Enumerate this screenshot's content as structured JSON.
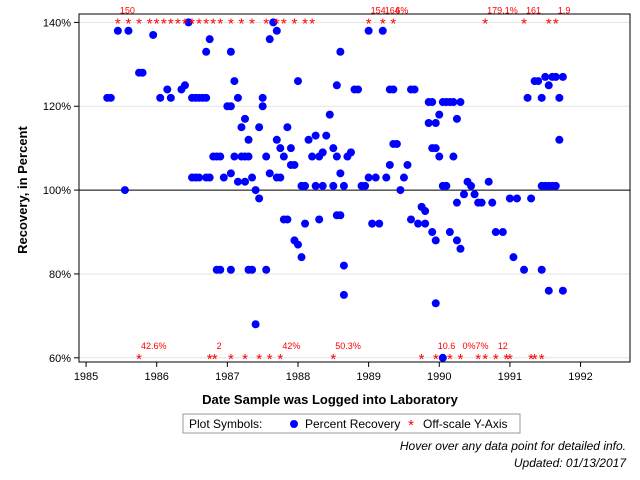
{
  "chart_data": {
    "type": "scatter",
    "xlabel": "Date Sample was Logged into Laboratory",
    "ylabel": "Recovery, in Percent",
    "xlim": [
      1984.9,
      1992.7
    ],
    "ylim": [
      59,
      142
    ],
    "x_ticks": [
      1985,
      1986,
      1987,
      1988,
      1989,
      1990,
      1991,
      1992
    ],
    "x_tick_labels": [
      "1985",
      "1986",
      "1987",
      "1988",
      "1989",
      "1990",
      "1991",
      "1992"
    ],
    "y_ticks": [
      60,
      80,
      100,
      120,
      140
    ],
    "y_tick_labels": [
      "60%",
      "80%",
      "100%",
      "120%",
      "140%"
    ],
    "reference_line": 100,
    "grid": "horizontal",
    "colors": {
      "points": "#0000ff",
      "offscale": "#ff0000",
      "grid": "#e3e3e3"
    },
    "series": [
      {
        "name": "Percent Recovery",
        "points": [
          [
            1985.3,
            122
          ],
          [
            1985.35,
            122
          ],
          [
            1985.45,
            138
          ],
          [
            1985.55,
            100
          ],
          [
            1985.6,
            138
          ],
          [
            1985.75,
            128
          ],
          [
            1985.8,
            128
          ],
          [
            1985.95,
            137
          ],
          [
            1986.05,
            122
          ],
          [
            1986.15,
            124
          ],
          [
            1986.2,
            122
          ],
          [
            1986.35,
            124
          ],
          [
            1986.4,
            125
          ],
          [
            1986.45,
            140
          ],
          [
            1986.5,
            122
          ],
          [
            1986.55,
            122
          ],
          [
            1986.6,
            122
          ],
          [
            1986.65,
            122
          ],
          [
            1986.7,
            122
          ],
          [
            1986.5,
            103
          ],
          [
            1986.55,
            103
          ],
          [
            1986.6,
            103
          ],
          [
            1986.7,
            103
          ],
          [
            1986.75,
            103
          ],
          [
            1986.7,
            133
          ],
          [
            1986.75,
            136
          ],
          [
            1986.8,
            108
          ],
          [
            1986.85,
            108
          ],
          [
            1986.9,
            108
          ],
          [
            1986.95,
            103
          ],
          [
            1986.85,
            81
          ],
          [
            1986.9,
            81
          ],
          [
            1987.0,
            120
          ],
          [
            1987.05,
            120
          ],
          [
            1987.05,
            133
          ],
          [
            1987.1,
            126
          ],
          [
            1987.15,
            122
          ],
          [
            1987.2,
            115
          ],
          [
            1987.25,
            117
          ],
          [
            1987.3,
            112
          ],
          [
            1987.1,
            108
          ],
          [
            1987.2,
            108
          ],
          [
            1987.25,
            108
          ],
          [
            1987.3,
            108
          ],
          [
            1987.05,
            104
          ],
          [
            1987.15,
            102
          ],
          [
            1987.25,
            102
          ],
          [
            1987.05,
            81
          ],
          [
            1987.3,
            81
          ],
          [
            1987.35,
            81
          ],
          [
            1987.35,
            103
          ],
          [
            1987.4,
            100
          ],
          [
            1987.4,
            68
          ],
          [
            1987.45,
            98
          ],
          [
            1987.45,
            115
          ],
          [
            1987.5,
            120
          ],
          [
            1987.5,
            122
          ],
          [
            1987.55,
            108
          ],
          [
            1987.6,
            104
          ],
          [
            1987.55,
            81
          ],
          [
            1987.6,
            136
          ],
          [
            1987.65,
            140
          ],
          [
            1987.7,
            138
          ],
          [
            1987.7,
            112
          ],
          [
            1987.75,
            110
          ],
          [
            1987.7,
            103
          ],
          [
            1987.75,
            103
          ],
          [
            1987.8,
            108
          ],
          [
            1987.8,
            93
          ],
          [
            1987.85,
            93
          ],
          [
            1987.85,
            115
          ],
          [
            1987.9,
            110
          ],
          [
            1987.9,
            106
          ],
          [
            1987.95,
            106
          ],
          [
            1987.95,
            88
          ],
          [
            1988.0,
            87
          ],
          [
            1988.05,
            84
          ],
          [
            1988.0,
            126
          ],
          [
            1988.05,
            101
          ],
          [
            1988.1,
            101
          ],
          [
            1988.1,
            92
          ],
          [
            1988.15,
            112
          ],
          [
            1988.2,
            108
          ],
          [
            1988.25,
            113
          ],
          [
            1988.3,
            108
          ],
          [
            1988.35,
            109
          ],
          [
            1988.25,
            101
          ],
          [
            1988.35,
            101
          ],
          [
            1988.3,
            93
          ],
          [
            1988.4,
            113
          ],
          [
            1988.45,
            118
          ],
          [
            1988.5,
            110
          ],
          [
            1988.55,
            125
          ],
          [
            1988.55,
            108
          ],
          [
            1988.6,
            104
          ],
          [
            1988.5,
            101
          ],
          [
            1988.55,
            94
          ],
          [
            1988.6,
            94
          ],
          [
            1988.65,
            101
          ],
          [
            1988.65,
            82
          ],
          [
            1988.65,
            75
          ],
          [
            1988.7,
            108
          ],
          [
            1988.75,
            109
          ],
          [
            1988.6,
            133
          ],
          [
            1988.8,
            124
          ],
          [
            1988.85,
            124
          ],
          [
            1988.9,
            101
          ],
          [
            1988.95,
            101
          ],
          [
            1989.0,
            138
          ],
          [
            1989.0,
            103
          ],
          [
            1989.05,
            92
          ],
          [
            1989.15,
            92
          ],
          [
            1989.1,
            103
          ],
          [
            1989.25,
            103
          ],
          [
            1989.2,
            138
          ],
          [
            1989.3,
            124
          ],
          [
            1989.35,
            124
          ],
          [
            1989.3,
            106
          ],
          [
            1989.35,
            111
          ],
          [
            1989.4,
            111
          ],
          [
            1989.45,
            100
          ],
          [
            1989.5,
            103
          ],
          [
            1989.55,
            106
          ],
          [
            1989.6,
            124
          ],
          [
            1989.65,
            124
          ],
          [
            1989.6,
            93
          ],
          [
            1989.7,
            92
          ],
          [
            1989.75,
            96
          ],
          [
            1989.8,
            95
          ],
          [
            1989.8,
            92
          ],
          [
            1989.85,
            121
          ],
          [
            1989.9,
            121
          ],
          [
            1989.85,
            116
          ],
          [
            1989.95,
            116
          ],
          [
            1989.9,
            110
          ],
          [
            1989.95,
            110
          ],
          [
            1989.9,
            90
          ],
          [
            1989.95,
            88
          ],
          [
            1989.95,
            73
          ],
          [
            1990.0,
            118
          ],
          [
            1990.05,
            121
          ],
          [
            1990.1,
            121
          ],
          [
            1990.0,
            108
          ],
          [
            1990.05,
            101
          ],
          [
            1990.1,
            101
          ],
          [
            1990.15,
            121
          ],
          [
            1990.2,
            121
          ],
          [
            1990.25,
            117
          ],
          [
            1990.3,
            121
          ],
          [
            1990.2,
            108
          ],
          [
            1990.25,
            97
          ],
          [
            1990.15,
            90
          ],
          [
            1990.25,
            88
          ],
          [
            1990.3,
            86
          ],
          [
            1990.35,
            99
          ],
          [
            1990.4,
            102
          ],
          [
            1990.45,
            101
          ],
          [
            1990.5,
            99
          ],
          [
            1990.55,
            97
          ],
          [
            1990.6,
            97
          ],
          [
            1990.05,
            60
          ],
          [
            1990.7,
            102
          ],
          [
            1990.75,
            97
          ],
          [
            1990.8,
            90
          ],
          [
            1990.9,
            90
          ],
          [
            1991.0,
            98
          ],
          [
            1991.05,
            84
          ],
          [
            1991.1,
            98
          ],
          [
            1991.2,
            81
          ],
          [
            1991.25,
            122
          ],
          [
            1991.3,
            98
          ],
          [
            1991.35,
            126
          ],
          [
            1991.4,
            126
          ],
          [
            1991.45,
            101
          ],
          [
            1991.5,
            101
          ],
          [
            1991.55,
            101
          ],
          [
            1991.6,
            101
          ],
          [
            1991.65,
            101
          ],
          [
            1991.45,
            122
          ],
          [
            1991.5,
            127
          ],
          [
            1991.55,
            125
          ],
          [
            1991.6,
            127
          ],
          [
            1991.65,
            127
          ],
          [
            1991.7,
            122
          ],
          [
            1991.75,
            127
          ],
          [
            1991.45,
            81
          ],
          [
            1991.55,
            76
          ],
          [
            1991.7,
            112
          ],
          [
            1991.75,
            76
          ]
        ]
      },
      {
        "name": "Off-scale Y-Axis",
        "points": [
          {
            "x": 1985.45,
            "y": 140,
            "label": "150"
          },
          {
            "x": 1985.6,
            "y": 140,
            "label": ""
          },
          {
            "x": 1985.75,
            "y": 140,
            "label": ""
          },
          {
            "x": 1985.9,
            "y": 140,
            "label": ""
          },
          {
            "x": 1986.0,
            "y": 140,
            "label": ""
          },
          {
            "x": 1986.1,
            "y": 140,
            "label": ""
          },
          {
            "x": 1986.2,
            "y": 140,
            "label": ""
          },
          {
            "x": 1986.3,
            "y": 140,
            "label": ""
          },
          {
            "x": 1986.4,
            "y": 140,
            "label": ""
          },
          {
            "x": 1986.5,
            "y": 140,
            "label": ""
          },
          {
            "x": 1986.6,
            "y": 140,
            "label": ""
          },
          {
            "x": 1986.7,
            "y": 140,
            "label": ""
          },
          {
            "x": 1986.8,
            "y": 140,
            "label": ""
          },
          {
            "x": 1986.9,
            "y": 140,
            "label": ""
          },
          {
            "x": 1987.05,
            "y": 140,
            "label": ""
          },
          {
            "x": 1987.2,
            "y": 140,
            "label": ""
          },
          {
            "x": 1987.35,
            "y": 140,
            "label": ""
          },
          {
            "x": 1987.55,
            "y": 140,
            "label": ""
          },
          {
            "x": 1987.7,
            "y": 140,
            "label": ""
          },
          {
            "x": 1987.8,
            "y": 140,
            "label": ""
          },
          {
            "x": 1987.95,
            "y": 140,
            "label": ""
          },
          {
            "x": 1988.1,
            "y": 140,
            "label": ""
          },
          {
            "x": 1988.2,
            "y": 140,
            "label": ""
          },
          {
            "x": 1989.0,
            "y": 140,
            "label": "154"
          },
          {
            "x": 1989.2,
            "y": 140,
            "label": "164"
          },
          {
            "x": 1989.35,
            "y": 140,
            "label": "6%"
          },
          {
            "x": 1990.65,
            "y": 140,
            "label": "179.1%"
          },
          {
            "x": 1991.2,
            "y": 140,
            "label": "161"
          },
          {
            "x": 1991.55,
            "y": 140,
            "label": ""
          },
          {
            "x": 1991.65,
            "y": 140,
            "label": "1.9"
          },
          {
            "x": 1985.75,
            "y": 60,
            "label": "42.6%"
          },
          {
            "x": 1986.75,
            "y": 60,
            "label": ""
          },
          {
            "x": 1986.82,
            "y": 60,
            "label": "2"
          },
          {
            "x": 1987.05,
            "y": 60,
            "label": ""
          },
          {
            "x": 1987.25,
            "y": 60,
            "label": ""
          },
          {
            "x": 1987.45,
            "y": 60,
            "label": ""
          },
          {
            "x": 1987.6,
            "y": 60,
            "label": ""
          },
          {
            "x": 1987.75,
            "y": 60,
            "label": "42%"
          },
          {
            "x": 1988.5,
            "y": 60,
            "label": "50.3%"
          },
          {
            "x": 1989.75,
            "y": 60,
            "label": ""
          },
          {
            "x": 1989.95,
            "y": 60,
            "label": "10.6"
          },
          {
            "x": 1990.15,
            "y": 60,
            "label": ""
          },
          {
            "x": 1990.3,
            "y": 60,
            "label": "0%7%"
          },
          {
            "x": 1990.55,
            "y": 60,
            "label": ""
          },
          {
            "x": 1990.65,
            "y": 60,
            "label": ""
          },
          {
            "x": 1990.8,
            "y": 60,
            "label": "12"
          },
          {
            "x": 1990.95,
            "y": 60,
            "label": ""
          },
          {
            "x": 1991.0,
            "y": 60,
            "label": ""
          },
          {
            "x": 1991.3,
            "y": 60,
            "label": ""
          },
          {
            "x": 1991.35,
            "y": 60,
            "label": ""
          },
          {
            "x": 1991.45,
            "y": 60,
            "label": ""
          }
        ]
      }
    ],
    "legend": {
      "title": "Plot Symbols:",
      "items": [
        "Percent Recovery",
        "Off-scale Y-Axis"
      ],
      "placement": "bottom"
    }
  },
  "notes": {
    "hover": "Hover over any data point for detailed info.",
    "updated": "Updated: 01/13/2017"
  }
}
